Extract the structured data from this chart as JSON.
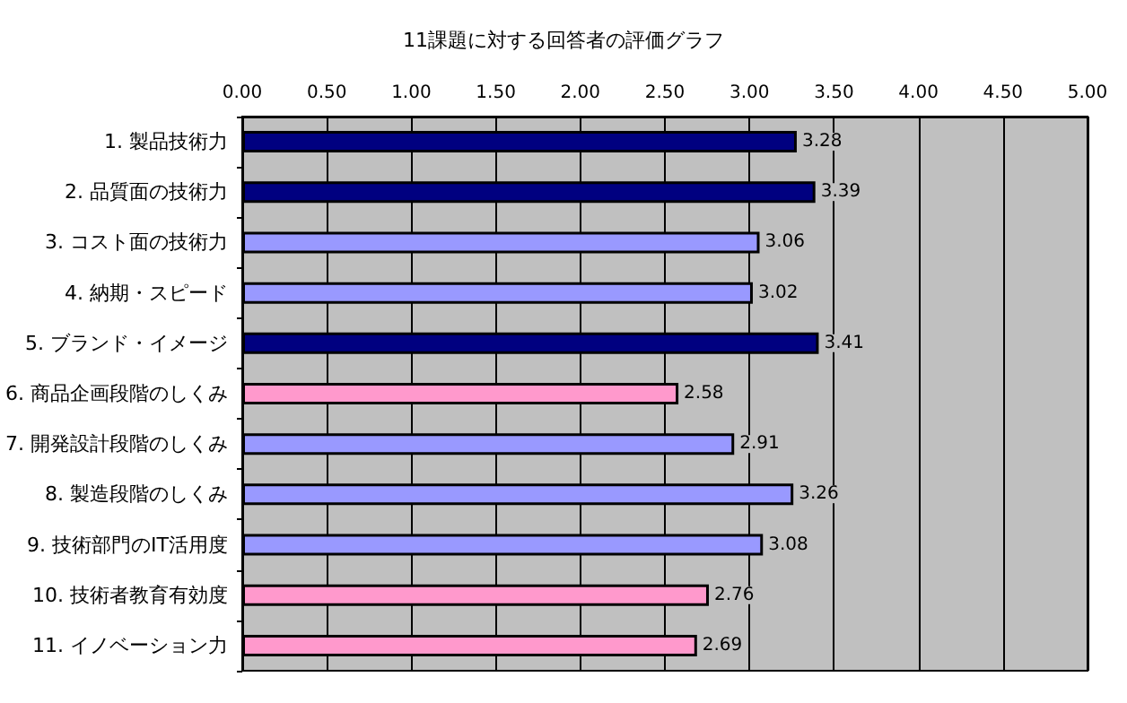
{
  "chart_data": {
    "type": "bar",
    "orientation": "horizontal",
    "title": "11課題に対する回答者の評価グラフ",
    "categories": [
      "1. 製品技術力",
      "2. 品質面の技術力",
      "3. コスト面の技術力",
      "4. 納期・スピード",
      "5. ブランド・イメージ",
      "6. 商品企画段階のしくみ",
      "7. 開発設計段階のしくみ",
      "8. 製造段階のしくみ",
      "9. 技術部門のIT活用度",
      "10. 技術者教育有効度",
      "11. イノベーション力"
    ],
    "values": [
      3.28,
      3.39,
      3.06,
      3.02,
      3.41,
      2.58,
      2.91,
      3.26,
      3.08,
      2.76,
      2.69
    ],
    "colors": [
      "#000080",
      "#000080",
      "#9999ff",
      "#9999ff",
      "#000080",
      "#ff99cc",
      "#9999ff",
      "#9999ff",
      "#9999ff",
      "#ff99cc",
      "#ff99cc"
    ],
    "xlim": [
      0,
      5
    ],
    "xticks": [
      {
        "value": 0,
        "label": "0.00"
      },
      {
        "value": 0.5,
        "label": "0.50"
      },
      {
        "value": 1,
        "label": "1.00"
      },
      {
        "value": 1.5,
        "label": "1.50"
      },
      {
        "value": 2,
        "label": "2.00"
      },
      {
        "value": 2.5,
        "label": "2.50"
      },
      {
        "value": 3,
        "label": "3.00"
      },
      {
        "value": 3.5,
        "label": "3.50"
      },
      {
        "value": 4,
        "label": "4.00"
      },
      {
        "value": 4.5,
        "label": "4.50"
      },
      {
        "value": 5,
        "label": "5.00"
      }
    ],
    "grid": "x",
    "data_labels": true
  }
}
